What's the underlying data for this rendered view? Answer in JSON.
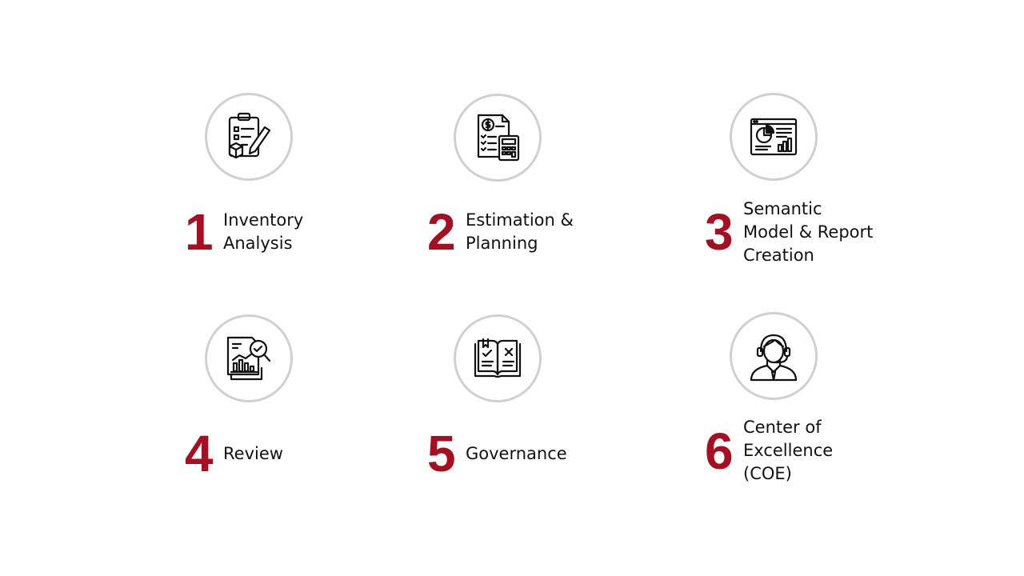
{
  "accent_color": "#a50f21",
  "steps": [
    {
      "number": "1",
      "label_lines": [
        "Inventory",
        "Analysis"
      ],
      "icon": "clipboard-checklist-icon"
    },
    {
      "number": "2",
      "label_lines": [
        "Estimation &",
        "Planning"
      ],
      "icon": "invoice-calculator-icon"
    },
    {
      "number": "3",
      "label_lines": [
        "Semantic",
        "Model & Report",
        "Creation"
      ],
      "icon": "dashboard-report-icon"
    },
    {
      "number": "4",
      "label_lines": [
        "Review"
      ],
      "icon": "report-magnifier-icon"
    },
    {
      "number": "5",
      "label_lines": [
        "Governance"
      ],
      "icon": "rulebook-icon"
    },
    {
      "number": "6",
      "label_lines": [
        "Center of",
        "Excellence",
        "(COE)"
      ],
      "icon": "support-agent-icon"
    }
  ]
}
